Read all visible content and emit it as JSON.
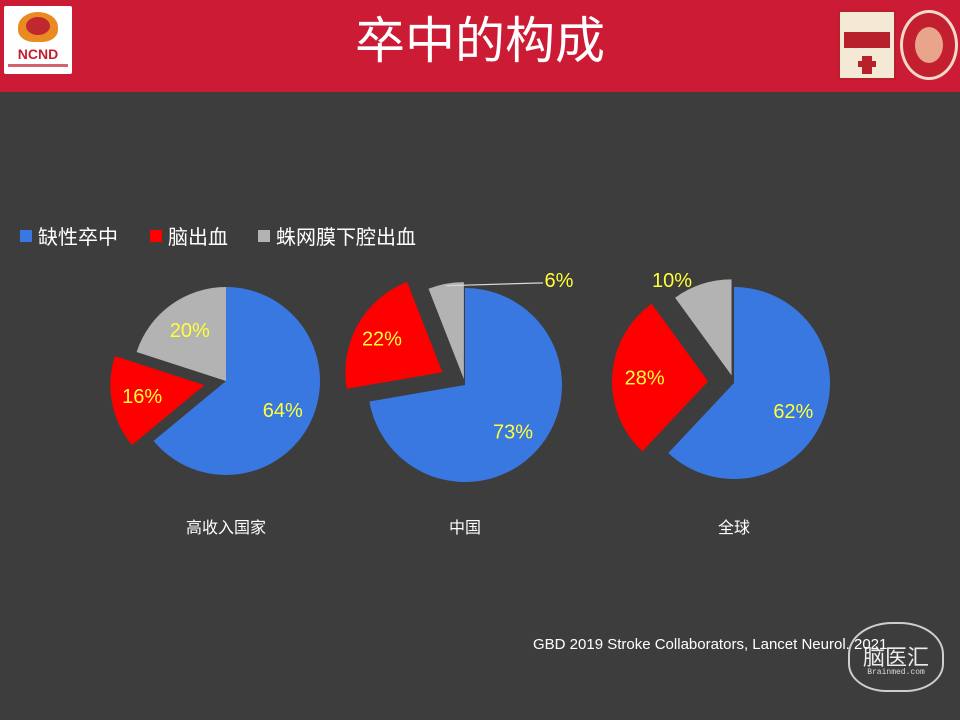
{
  "slide": {
    "title": "卒中的构成",
    "logo_text": "NCND",
    "citation": "GBD 2019 Stroke Collaborators, Lancet Neurol. 2021",
    "watermark_text": "脑医汇",
    "watermark_sub": "Brainmed.com"
  },
  "colors": {
    "header": "#cc1c35",
    "background": "#3d3d3d",
    "ischemic": "#3878e0",
    "hemorrhage": "#ff0000",
    "sah": "#b3b3b3",
    "label": "#ffff3a"
  },
  "chart_data": {
    "type": "pie",
    "legend": [
      "缺性卒中",
      "脑出血",
      "蛛网膜下腔出血"
    ],
    "legend_position": "top-left",
    "charts": [
      {
        "category": "高收入国家",
        "series": [
          {
            "name": "缺性卒中",
            "value": 64,
            "label": "64%"
          },
          {
            "name": "脑出血",
            "value": 16,
            "label": "16%"
          },
          {
            "name": "蛛网膜下腔出血",
            "value": 20,
            "label": "20%"
          }
        ]
      },
      {
        "category": "中国",
        "series": [
          {
            "name": "缺性卒中",
            "value": 73,
            "label": "73%"
          },
          {
            "name": "脑出血",
            "value": 22,
            "label": "22%"
          },
          {
            "name": "蛛网膜下腔出血",
            "value": 6,
            "label": "6%"
          }
        ]
      },
      {
        "category": "全球",
        "series": [
          {
            "name": "缺性卒中",
            "value": 62,
            "label": "62%"
          },
          {
            "name": "脑出血",
            "value": 28,
            "label": "28%"
          },
          {
            "name": "蛛网膜下腔出血",
            "value": 10,
            "label": "10%"
          }
        ]
      }
    ]
  }
}
